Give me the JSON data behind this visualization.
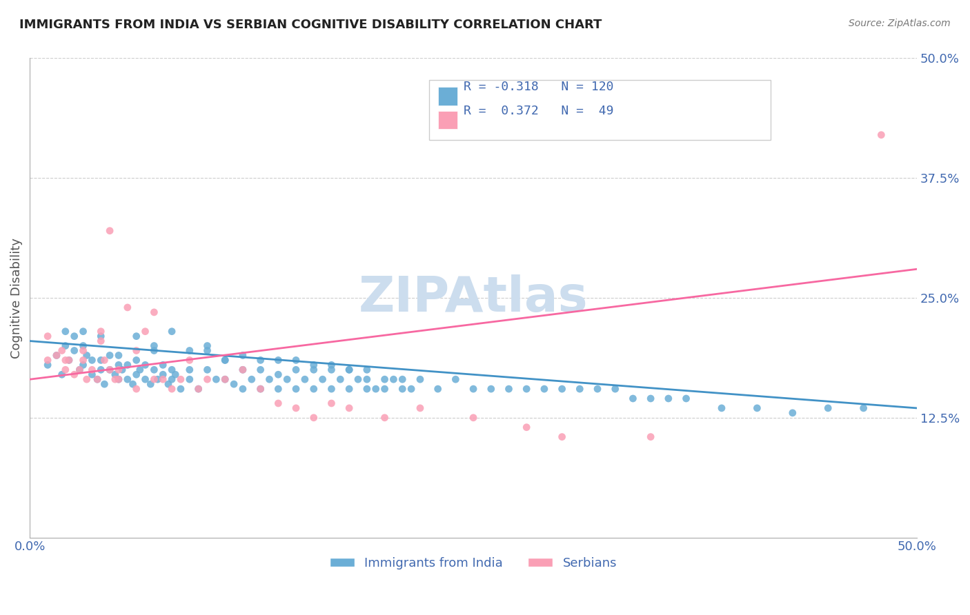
{
  "title": "IMMIGRANTS FROM INDIA VS SERBIAN COGNITIVE DISABILITY CORRELATION CHART",
  "source_text": "Source: ZipAtlas.com",
  "xlabel": "",
  "ylabel": "Cognitive Disability",
  "xlim": [
    0.0,
    0.5
  ],
  "ylim": [
    0.0,
    0.5
  ],
  "xtick_labels": [
    "0.0%",
    "50.0%"
  ],
  "xtick_vals": [
    0.0,
    0.5
  ],
  "ytick_labels": [
    "12.5%",
    "25.0%",
    "37.5%",
    "50.0%"
  ],
  "ytick_vals": [
    0.125,
    0.25,
    0.375,
    0.5
  ],
  "blue_color": "#6baed6",
  "pink_color": "#fa9fb5",
  "blue_line_color": "#4292c6",
  "pink_line_color": "#f768a1",
  "axis_label_color": "#4169b0",
  "grid_color": "#cccccc",
  "title_color": "#222222",
  "watermark_text": "ZIPAtlas",
  "watermark_color": "#ccddee",
  "legend_R1": "R = -0.318",
  "legend_N1": "N = 120",
  "legend_R2": "R =  0.372",
  "legend_N2": "N =  49",
  "legend_label1": "Immigrants from India",
  "legend_label2": "Serbians",
  "blue_scatter_x": [
    0.01,
    0.015,
    0.018,
    0.02,
    0.022,
    0.025,
    0.025,
    0.028,
    0.03,
    0.03,
    0.032,
    0.035,
    0.035,
    0.038,
    0.04,
    0.04,
    0.042,
    0.045,
    0.045,
    0.048,
    0.05,
    0.05,
    0.052,
    0.055,
    0.055,
    0.058,
    0.06,
    0.06,
    0.062,
    0.065,
    0.065,
    0.068,
    0.07,
    0.07,
    0.072,
    0.075,
    0.075,
    0.078,
    0.08,
    0.08,
    0.082,
    0.085,
    0.09,
    0.09,
    0.095,
    0.1,
    0.1,
    0.105,
    0.11,
    0.11,
    0.115,
    0.12,
    0.12,
    0.125,
    0.13,
    0.13,
    0.135,
    0.14,
    0.14,
    0.145,
    0.15,
    0.15,
    0.155,
    0.16,
    0.16,
    0.165,
    0.17,
    0.17,
    0.175,
    0.18,
    0.18,
    0.185,
    0.19,
    0.19,
    0.195,
    0.2,
    0.2,
    0.205,
    0.21,
    0.21,
    0.215,
    0.22,
    0.23,
    0.24,
    0.25,
    0.26,
    0.27,
    0.28,
    0.29,
    0.3,
    0.31,
    0.32,
    0.33,
    0.34,
    0.35,
    0.36,
    0.37,
    0.39,
    0.41,
    0.43,
    0.02,
    0.03,
    0.04,
    0.05,
    0.06,
    0.07,
    0.08,
    0.09,
    0.1,
    0.11,
    0.12,
    0.13,
    0.14,
    0.15,
    0.16,
    0.17,
    0.18,
    0.19,
    0.45,
    0.47
  ],
  "blue_scatter_y": [
    0.18,
    0.19,
    0.17,
    0.2,
    0.185,
    0.195,
    0.21,
    0.175,
    0.2,
    0.18,
    0.19,
    0.17,
    0.185,
    0.165,
    0.175,
    0.185,
    0.16,
    0.19,
    0.175,
    0.17,
    0.18,
    0.165,
    0.175,
    0.165,
    0.18,
    0.16,
    0.185,
    0.17,
    0.175,
    0.165,
    0.18,
    0.16,
    0.195,
    0.175,
    0.165,
    0.17,
    0.18,
    0.16,
    0.175,
    0.165,
    0.17,
    0.155,
    0.175,
    0.165,
    0.155,
    0.2,
    0.175,
    0.165,
    0.185,
    0.165,
    0.16,
    0.175,
    0.155,
    0.165,
    0.175,
    0.155,
    0.165,
    0.17,
    0.155,
    0.165,
    0.175,
    0.155,
    0.165,
    0.175,
    0.155,
    0.165,
    0.175,
    0.155,
    0.165,
    0.175,
    0.155,
    0.165,
    0.155,
    0.165,
    0.155,
    0.165,
    0.155,
    0.165,
    0.155,
    0.165,
    0.155,
    0.165,
    0.155,
    0.165,
    0.155,
    0.155,
    0.155,
    0.155,
    0.155,
    0.155,
    0.155,
    0.155,
    0.155,
    0.145,
    0.145,
    0.145,
    0.145,
    0.135,
    0.135,
    0.13,
    0.215,
    0.215,
    0.21,
    0.19,
    0.21,
    0.2,
    0.215,
    0.195,
    0.195,
    0.185,
    0.19,
    0.185,
    0.185,
    0.185,
    0.18,
    0.18,
    0.175,
    0.175,
    0.135,
    0.135
  ],
  "pink_scatter_x": [
    0.01,
    0.015,
    0.018,
    0.02,
    0.022,
    0.025,
    0.028,
    0.03,
    0.032,
    0.035,
    0.038,
    0.04,
    0.042,
    0.045,
    0.048,
    0.05,
    0.055,
    0.06,
    0.065,
    0.07,
    0.075,
    0.08,
    0.085,
    0.09,
    0.095,
    0.1,
    0.11,
    0.12,
    0.13,
    0.14,
    0.15,
    0.16,
    0.17,
    0.18,
    0.2,
    0.22,
    0.25,
    0.28,
    0.3,
    0.35,
    0.01,
    0.02,
    0.03,
    0.04,
    0.05,
    0.06,
    0.07,
    0.045,
    0.48
  ],
  "pink_scatter_y": [
    0.185,
    0.19,
    0.195,
    0.175,
    0.185,
    0.17,
    0.175,
    0.185,
    0.165,
    0.175,
    0.165,
    0.215,
    0.185,
    0.175,
    0.165,
    0.175,
    0.24,
    0.195,
    0.215,
    0.235,
    0.165,
    0.155,
    0.165,
    0.185,
    0.155,
    0.165,
    0.165,
    0.175,
    0.155,
    0.14,
    0.135,
    0.125,
    0.14,
    0.135,
    0.125,
    0.135,
    0.125,
    0.115,
    0.105,
    0.105,
    0.21,
    0.185,
    0.195,
    0.205,
    0.165,
    0.155,
    0.165,
    0.32,
    0.42
  ],
  "blue_trend_x": [
    0.0,
    0.5
  ],
  "blue_trend_y": [
    0.205,
    0.135
  ],
  "pink_trend_x": [
    0.0,
    0.5
  ],
  "pink_trend_y": [
    0.165,
    0.28
  ],
  "background_color": "#ffffff"
}
